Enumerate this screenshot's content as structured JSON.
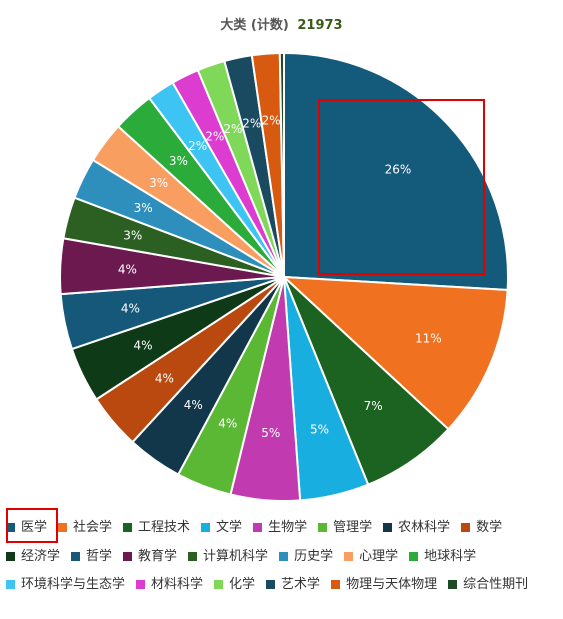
{
  "header": {
    "title": "大类 (计数)",
    "total": "21973"
  },
  "chart_data": {
    "type": "pie",
    "title": "大类 (计数)",
    "total": 21973,
    "slices": [
      {
        "name": "医学",
        "value": 26,
        "label": "26%",
        "color": "#145a7a"
      },
      {
        "name": "社会学",
        "value": 11,
        "label": "11%",
        "color": "#f07120"
      },
      {
        "name": "工程技术",
        "value": 7,
        "label": "7%",
        "color": "#1c6322"
      },
      {
        "name": "文学",
        "value": 5,
        "label": "5%",
        "color": "#19aee0"
      },
      {
        "name": "生物学",
        "value": 5,
        "label": "5%",
        "color": "#c23aaf"
      },
      {
        "name": "管理学",
        "value": 4,
        "label": "4%",
        "color": "#5ab834"
      },
      {
        "name": "农林科学",
        "value": 4,
        "label": "4%",
        "color": "#12364a"
      },
      {
        "name": "数学",
        "value": 4,
        "label": "4%",
        "color": "#b9490f"
      },
      {
        "name": "经济学",
        "value": 4,
        "label": "4%",
        "color": "#0f3a18"
      },
      {
        "name": "哲学",
        "value": 4,
        "label": "4%",
        "color": "#15587a"
      },
      {
        "name": "教育学",
        "value": 4,
        "label": "4%",
        "color": "#6c1950"
      },
      {
        "name": "计算机科学",
        "value": 3,
        "label": "3%",
        "color": "#2c5f22"
      },
      {
        "name": "历史学",
        "value": 3,
        "label": "3%",
        "color": "#2e8fbc"
      },
      {
        "name": "心理学",
        "value": 3,
        "label": "3%",
        "color": "#f79e60"
      },
      {
        "name": "地球科学",
        "value": 3,
        "label": "3%",
        "color": "#2aab3a"
      },
      {
        "name": "环境科学与生态学",
        "value": 2,
        "label": "2%",
        "color": "#3ec4f2"
      },
      {
        "name": "材料科学",
        "value": 2,
        "label": "2%",
        "color": "#dc3cd0"
      },
      {
        "name": "化学",
        "value": 2,
        "label": "2%",
        "color": "#7fd858"
      },
      {
        "name": "艺术学",
        "value": 2,
        "label": "2%",
        "color": "#1a4a60"
      },
      {
        "name": "物理与天体物理",
        "value": 2,
        "label": "2%",
        "color": "#d85a10"
      },
      {
        "name": "综合性期刊",
        "value": 0.3,
        "label": "",
        "color": "#1e4a26"
      }
    ],
    "legend_placement": "bottom",
    "highlight": {
      "color": "#e00000",
      "slice": "医学"
    }
  }
}
